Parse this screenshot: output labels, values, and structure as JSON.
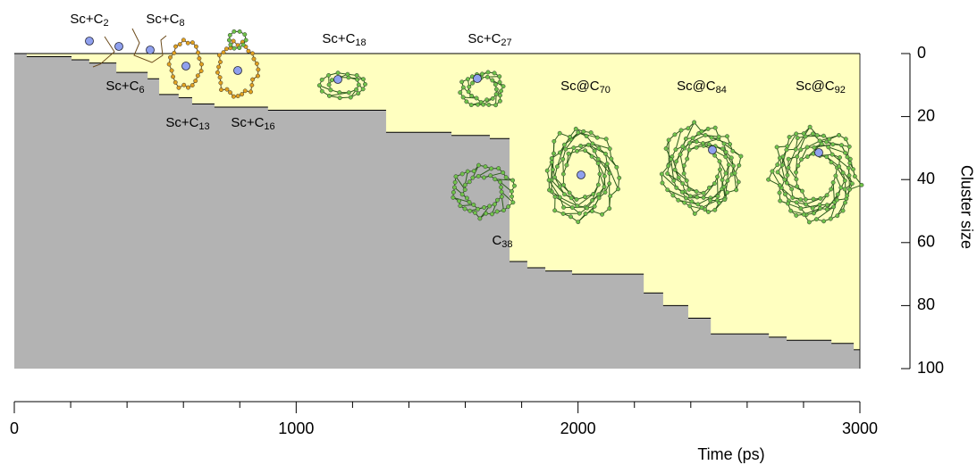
{
  "chart_data": {
    "type": "step",
    "x": [
      0,
      44,
      203,
      266,
      362,
      473,
      514,
      583,
      631,
      710,
      900,
      1319,
      1551,
      1687,
      1757,
      1820,
      1884,
      1979,
      2233,
      2302,
      2391,
      2471,
      2677,
      2740,
      2899,
      2978
    ],
    "values": [
      0,
      1,
      2,
      3,
      6,
      8,
      13,
      14,
      16,
      17,
      18,
      25,
      26,
      27,
      66,
      68,
      69,
      70,
      76,
      80,
      84,
      89,
      90,
      91,
      92,
      94
    ],
    "xlim": [
      0,
      3000
    ],
    "xticks": [
      0,
      1000,
      2000,
      3000
    ],
    "xminorticks": [
      200,
      400,
      600,
      800,
      1200,
      1400,
      1600,
      1800,
      2200,
      2400,
      2600,
      2800
    ],
    "ylim": [
      0,
      100
    ],
    "yticks": [
      0,
      20,
      40,
      60,
      80,
      100
    ],
    "xlabel": "Time (ps)",
    "ylabel": "Cluster size",
    "fill_above": "#ffffc0",
    "fill_below": "#b3b3b3",
    "color": "#000000",
    "annotations": [
      {
        "base": "Sc+C",
        "sub": "2"
      },
      {
        "base": "Sc+C",
        "sub": "8"
      },
      {
        "base": "Sc+C",
        "sub": "6"
      },
      {
        "base": "Sc+C",
        "sub": "13"
      },
      {
        "base": "Sc+C",
        "sub": "16"
      },
      {
        "base": "Sc+C",
        "sub": "18"
      },
      {
        "base": "Sc+C",
        "sub": "27"
      },
      {
        "base": "Sc@C",
        "sub": "70"
      },
      {
        "base": "Sc@C",
        "sub": "84"
      },
      {
        "base": "Sc@C",
        "sub": "92"
      },
      {
        "base": "C",
        "sub": "38"
      }
    ]
  }
}
